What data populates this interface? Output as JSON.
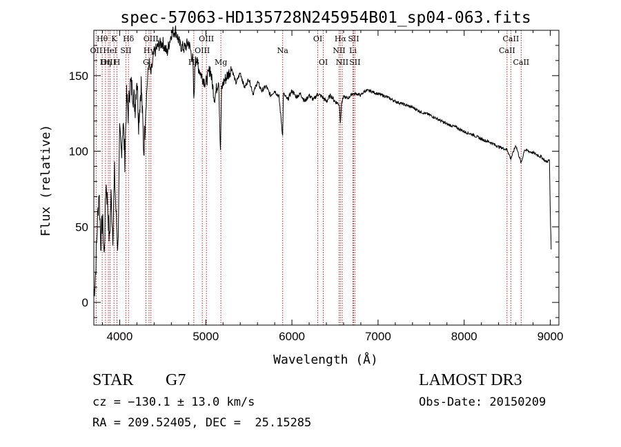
{
  "chart_data": {
    "type": "line",
    "title": "spec-57063-HD135728N245954B01_sp04-063.fits",
    "xlabel": "Wavelength (Å)",
    "ylabel": "Flux (relative)",
    "xlim": [
      3700,
      9100
    ],
    "ylim": [
      -15,
      180
    ],
    "xticks": [
      4000,
      5000,
      6000,
      7000,
      8000,
      9000
    ],
    "yticks": [
      0,
      50,
      100,
      150
    ],
    "series": [
      {
        "name": "spectrum",
        "x": [
          3700,
          3720,
          3740,
          3760,
          3780,
          3800,
          3820,
          3840,
          3860,
          3880,
          3900,
          3920,
          3940,
          3960,
          3980,
          4000,
          4020,
          4040,
          4060,
          4080,
          4100,
          4120,
          4150,
          4180,
          4200,
          4220,
          4250,
          4280,
          4300,
          4320,
          4340,
          4360,
          4400,
          4450,
          4500,
          4550,
          4600,
          4650,
          4700,
          4750,
          4800,
          4850,
          4861,
          4880,
          4900,
          4950,
          5000,
          5050,
          5100,
          5150,
          5170,
          5183,
          5200,
          5250,
          5300,
          5350,
          5400,
          5450,
          5500,
          5550,
          5600,
          5650,
          5700,
          5750,
          5800,
          5850,
          5893,
          5900,
          5950,
          6000,
          6050,
          6100,
          6150,
          6200,
          6250,
          6300,
          6350,
          6400,
          6450,
          6500,
          6550,
          6563,
          6580,
          6600,
          6650,
          6700,
          6750,
          6800,
          6850,
          6900,
          6950,
          7000,
          7100,
          7200,
          7300,
          7400,
          7500,
          7600,
          7700,
          7800,
          7900,
          8000,
          8100,
          8200,
          8300,
          8400,
          8500,
          8542,
          8600,
          8662,
          8700,
          8800,
          8900,
          8950,
          8990,
          9000,
          9010
        ],
        "values": [
          5,
          20,
          50,
          75,
          40,
          55,
          30,
          80,
          65,
          40,
          70,
          45,
          85,
          55,
          35,
          110,
          100,
          120,
          95,
          135,
          125,
          145,
          140,
          130,
          150,
          120,
          145,
          100,
          125,
          145,
          160,
          150,
          165,
          170,
          172,
          165,
          178,
          180,
          170,
          168,
          172,
          160,
          132,
          165,
          158,
          150,
          145,
          155,
          135,
          148,
          98,
          140,
          145,
          150,
          155,
          145,
          152,
          142,
          148,
          138,
          146,
          140,
          143,
          137,
          140,
          136,
          110,
          138,
          134,
          140,
          136,
          138,
          133,
          137,
          134,
          138,
          136,
          133,
          137,
          133,
          131,
          120,
          133,
          136,
          135,
          138,
          138,
          137,
          140,
          140,
          139,
          138,
          136,
          133,
          131,
          129,
          126,
          124,
          121,
          118,
          116,
          113,
          111,
          108,
          106,
          103,
          101,
          95,
          104,
          92,
          101,
          99,
          96,
          93,
          94,
          60,
          35
        ]
      }
    ],
    "line_markers": [
      {
        "label": "Hθ",
        "x": 3797,
        "row": 0
      },
      {
        "label": "OII",
        "x": 3727,
        "row": 1
      },
      {
        "label": "OIII",
        "x": 3869,
        "row": 2
      },
      {
        "label": "K",
        "x": 3934,
        "row": 0
      },
      {
        "label": "HeI",
        "x": 3889,
        "row": 1
      },
      {
        "label": "Hη",
        "x": 3835,
        "row": 2
      },
      {
        "label": "H",
        "x": 3969,
        "row": 2
      },
      {
        "label": "Hδ",
        "x": 4102,
        "row": 0
      },
      {
        "label": "SII",
        "x": 4072,
        "row": 1
      },
      {
        "label": "OIII",
        "x": 4363,
        "row": 0
      },
      {
        "label": "Hγ",
        "x": 4341,
        "row": 1
      },
      {
        "label": "G",
        "x": 4305,
        "row": 2
      },
      {
        "label": "OIII",
        "x": 5007,
        "row": 0
      },
      {
        "label": "OIII",
        "x": 4959,
        "row": 1
      },
      {
        "label": "Hβ",
        "x": 4861,
        "row": 2
      },
      {
        "label": "Mg",
        "x": 5175,
        "row": 2
      },
      {
        "label": "Na",
        "x": 5893,
        "row": 1
      },
      {
        "label": "OI",
        "x": 6300,
        "row": 0
      },
      {
        "label": "OI",
        "x": 6364,
        "row": 2
      },
      {
        "label": "Hα",
        "x": 6563,
        "row": 0
      },
      {
        "label": "SII",
        "x": 6716,
        "row": 0
      },
      {
        "label": "NII",
        "x": 6548,
        "row": 1
      },
      {
        "label": "Li",
        "x": 6708,
        "row": 1
      },
      {
        "label": "NII",
        "x": 6584,
        "row": 2
      },
      {
        "label": "SII",
        "x": 6731,
        "row": 2
      },
      {
        "label": "CaII",
        "x": 8542,
        "row": 0
      },
      {
        "label": "CaII",
        "x": 8498,
        "row": 1
      },
      {
        "label": "CaII",
        "x": 8662,
        "row": 2
      }
    ]
  },
  "info": {
    "object_class": "STAR",
    "subclass": "G7",
    "survey": "LAMOST DR3",
    "cz": "cz = −130.1 ± 13.0 km/s",
    "obs_date": "Obs-Date: 20150209",
    "coords": "RA = 209.52405, DEC =  25.15285"
  },
  "colors": {
    "spectrum": "#000000",
    "marker": "#b22222",
    "axis": "#000000"
  }
}
